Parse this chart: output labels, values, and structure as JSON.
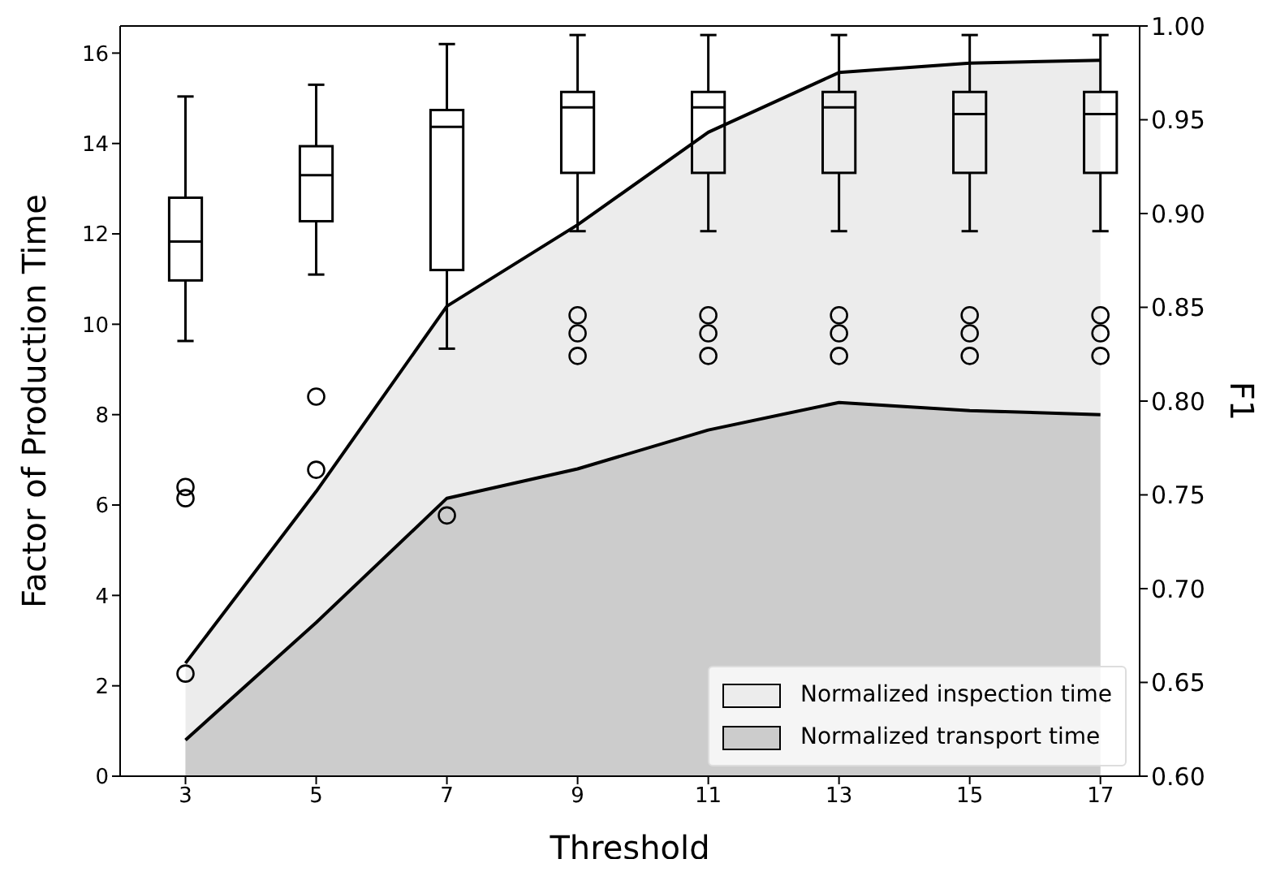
{
  "chart_data": {
    "type": "area",
    "xlabel": "Threshold",
    "ylabel": "Factor of Production Time",
    "y2label": "F1",
    "x": [
      3,
      5,
      7,
      9,
      11,
      13,
      15,
      17
    ],
    "series": [
      {
        "name": "Normalized inspection time",
        "color": "#ececec",
        "values": [
          2.5,
          6.3,
          10.4,
          12.2,
          14.25,
          15.57,
          15.78,
          15.84
        ]
      },
      {
        "name": "Normalized transport time",
        "color": "#cccccc",
        "values": [
          0.8,
          3.4,
          6.15,
          6.8,
          7.66,
          8.27,
          8.09,
          8.0
        ]
      },
      {
        "type": "box",
        "boxes": [
          {
            "low": 9.63,
            "q1": 10.97,
            "median": 11.83,
            "q3": 12.8,
            "high": 15.04,
            "outliers": [
              6.4,
              6.15,
              2.27
            ]
          },
          {
            "low": 11.1,
            "q1": 12.28,
            "median": 13.3,
            "q3": 13.94,
            "high": 15.3,
            "outliers": [
              8.4,
              6.78
            ]
          },
          {
            "low": 9.46,
            "q1": 11.2,
            "median": 14.37,
            "q3": 14.74,
            "high": 16.2,
            "outliers": [
              5.77
            ]
          },
          {
            "low": 12.06,
            "q1": 13.35,
            "median": 14.8,
            "q3": 15.14,
            "high": 16.4,
            "outliers": [
              10.2,
              9.8,
              9.3
            ]
          },
          {
            "low": 12.06,
            "q1": 13.35,
            "median": 14.8,
            "q3": 15.14,
            "high": 16.4,
            "outliers": [
              10.2,
              9.8,
              9.3
            ]
          },
          {
            "low": 12.06,
            "q1": 13.35,
            "median": 14.8,
            "q3": 15.14,
            "high": 16.4,
            "outliers": [
              10.2,
              9.8,
              9.3
            ]
          },
          {
            "low": 12.06,
            "q1": 13.35,
            "median": 14.65,
            "q3": 15.14,
            "high": 16.4,
            "outliers": [
              10.2,
              9.8,
              9.3
            ]
          },
          {
            "low": 12.06,
            "q1": 13.35,
            "median": 14.65,
            "q3": 15.14,
            "high": 16.4,
            "outliers": [
              10.2,
              9.8,
              9.3
            ]
          }
        ]
      }
    ],
    "xlim": [
      2,
      17.6
    ],
    "xticks": [
      3,
      5,
      7,
      9,
      11,
      13,
      15,
      17
    ],
    "ylim": [
      0,
      16.6
    ],
    "yticks": [
      0,
      2,
      4,
      6,
      8,
      10,
      12,
      14,
      16
    ],
    "y2lim": [
      0.6,
      1.0
    ],
    "y2ticks": [
      {
        "value": 0.6,
        "label": "0.60"
      },
      {
        "value": 0.65,
        "label": "0.65"
      },
      {
        "value": 0.7,
        "label": "0.70"
      },
      {
        "value": 0.75,
        "label": "0.75"
      },
      {
        "value": 0.8,
        "label": "0.80"
      },
      {
        "value": 0.85,
        "label": "0.85"
      },
      {
        "value": 0.9,
        "label": "0.90"
      },
      {
        "value": 0.95,
        "label": "0.95"
      },
      {
        "value": 1.0,
        "label": "1.00"
      }
    ],
    "grid": false,
    "legend": "bottom right"
  }
}
